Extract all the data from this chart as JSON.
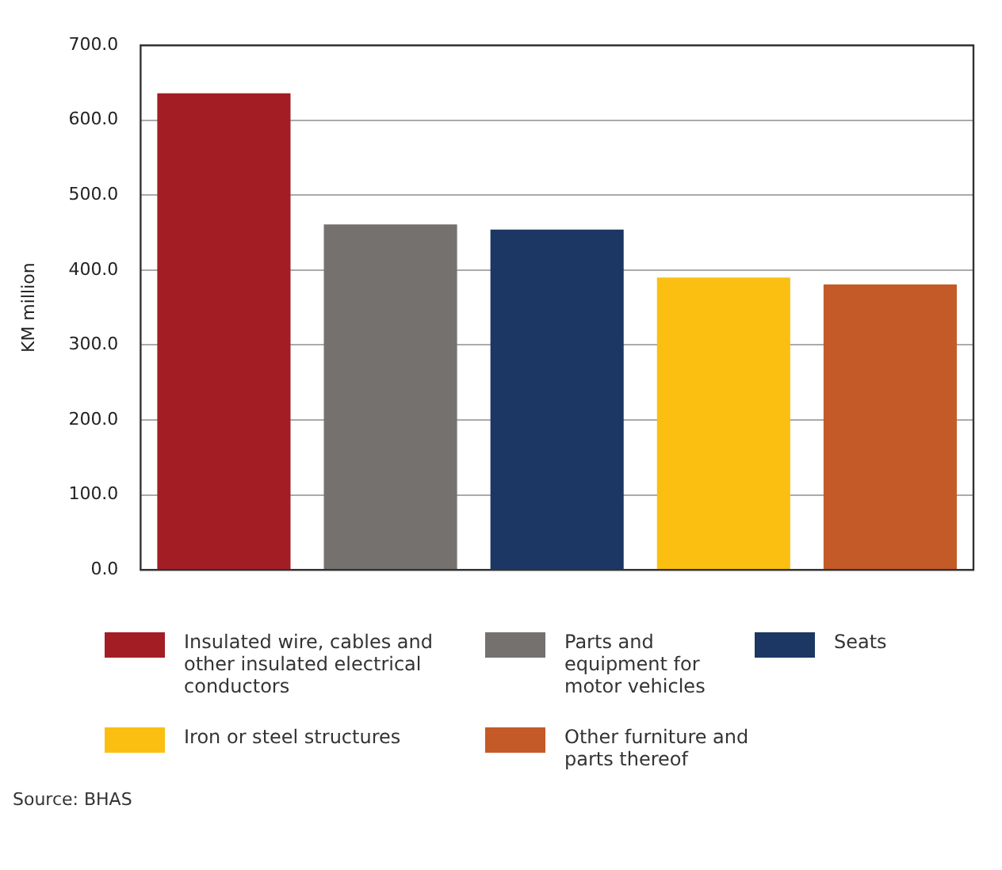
{
  "chart_data": {
    "type": "bar",
    "ylabel": "KM million",
    "categories": [
      null,
      null,
      null,
      null,
      null
    ],
    "series": [
      {
        "name": "Insulated wire, cables and other insulated electrical conductors",
        "color": "#a31d24",
        "values": [
          636,
          null,
          null,
          null,
          null
        ]
      },
      {
        "name": "Parts and equipment for motor vehicles",
        "color": "#75716f",
        "values": [
          null,
          461,
          null,
          null,
          null
        ]
      },
      {
        "name": "Seats",
        "color": "#1c3763",
        "values": [
          null,
          null,
          454,
          null,
          null
        ]
      },
      {
        "name": "Iron or steel structures",
        "color": "#fbbf12",
        "values": [
          null,
          null,
          null,
          390,
          null
        ]
      },
      {
        "name": "Other furniture and parts thereof",
        "color": "#c45a27",
        "values": [
          null,
          null,
          null,
          null,
          381
        ]
      }
    ],
    "ylim": [
      0,
      700
    ],
    "yticks": [
      {
        "value": 0,
        "label": "0.0"
      },
      {
        "value": 100,
        "label": "100.0"
      },
      {
        "value": 200,
        "label": "200.0"
      },
      {
        "value": 300,
        "label": "300.0"
      },
      {
        "value": 400,
        "label": "400.0"
      },
      {
        "value": 500,
        "label": "500.0"
      },
      {
        "value": 600,
        "label": "600.0"
      },
      {
        "value": 700,
        "label": "700.0"
      }
    ],
    "grid": "y",
    "legend": "bottom",
    "annotations": [
      "Source: BHAS"
    ]
  }
}
